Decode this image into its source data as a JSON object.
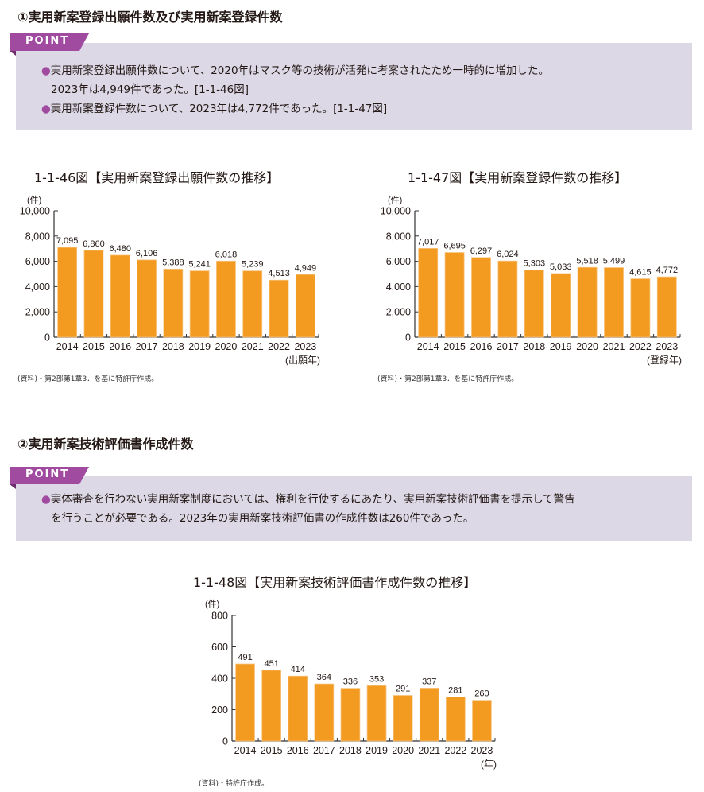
{
  "section1": {
    "title": "①実用新案登録出願件数及び実用新案登録件数",
    "point_label": "POINT",
    "bullet": "●",
    "lines": [
      "実用新案登録出願件数について、2020年はマスク等の技術が活発に考案されたため一時的に増加した。",
      "2023年は4,949件であった。[1-1-46図]",
      "実用新案登録件数について、2023年は4,772件であった。[1-1-47図]"
    ]
  },
  "section2": {
    "title": "②実用新案技術評価書作成件数",
    "point_label": "POINT",
    "bullet": "●",
    "lines": [
      "実体審査を行わない実用新案制度においては、権利を行使するにあたり、実用新案技術評価書を提示して警告",
      "を行うことが必要である。2023年の実用新案技術評価書の作成件数は260件であった。"
    ]
  },
  "colors": {
    "bar": "#f39a21",
    "bar_edge": "#f7c27a",
    "point_bg": "#dcd8e6",
    "point_tag": "#a04aa0",
    "axis": "#333333"
  },
  "chart_data": [
    {
      "type": "bar",
      "title": "1-1-46図【実用新案登録出願件数の推移】",
      "ylabel": "(件)",
      "xlabel": "(出願年)",
      "categories": [
        "2014",
        "2015",
        "2016",
        "2017",
        "2018",
        "2019",
        "2020",
        "2021",
        "2022",
        "2023"
      ],
      "values": [
        7095,
        6860,
        6480,
        6106,
        5388,
        5241,
        6018,
        5239,
        4513,
        4949
      ],
      "value_labels": [
        "7,095",
        "6,860",
        "6,480",
        "6,106",
        "5,388",
        "5,241",
        "6,018",
        "5,239",
        "4,513",
        "4,949"
      ],
      "ylim": [
        0,
        10000
      ],
      "yticks": [
        0,
        2000,
        4000,
        6000,
        8000,
        10000
      ],
      "ytick_labels": [
        "0",
        "2,000",
        "4,000",
        "6,000",
        "8,000",
        "10,000"
      ],
      "grid": false,
      "source": "(資料)・第2部第1章3．を基に特許庁作成。"
    },
    {
      "type": "bar",
      "title": "1-1-47図【実用新案登録件数の推移】",
      "ylabel": "(件)",
      "xlabel": "(登録年)",
      "categories": [
        "2014",
        "2015",
        "2016",
        "2017",
        "2018",
        "2019",
        "2020",
        "2021",
        "2022",
        "2023"
      ],
      "values": [
        7017,
        6695,
        6297,
        6024,
        5303,
        5033,
        5518,
        5499,
        4615,
        4772
      ],
      "value_labels": [
        "7,017",
        "6,695",
        "6,297",
        "6,024",
        "5,303",
        "5,033",
        "5,518",
        "5,499",
        "4,615",
        "4,772"
      ],
      "ylim": [
        0,
        10000
      ],
      "yticks": [
        0,
        2000,
        4000,
        6000,
        8000,
        10000
      ],
      "ytick_labels": [
        "0",
        "2,000",
        "4,000",
        "6,000",
        "8,000",
        "10,000"
      ],
      "grid": false,
      "source": "(資料)・第2部第1章3．を基に特許庁作成。"
    },
    {
      "type": "bar",
      "title": "1-1-48図【実用新案技術評価書作成件数の推移】",
      "ylabel": "(件)",
      "xlabel": "(年)",
      "categories": [
        "2014",
        "2015",
        "2016",
        "2017",
        "2018",
        "2019",
        "2020",
        "2021",
        "2022",
        "2023"
      ],
      "values": [
        491,
        451,
        414,
        364,
        336,
        353,
        291,
        337,
        281,
        260
      ],
      "value_labels": [
        "491",
        "451",
        "414",
        "364",
        "336",
        "353",
        "291",
        "337",
        "281",
        "260"
      ],
      "ylim": [
        0,
        800
      ],
      "yticks": [
        0,
        200,
        400,
        600,
        800
      ],
      "ytick_labels": [
        "0",
        "200",
        "400",
        "600",
        "800"
      ],
      "grid": false,
      "source": "(資料)・特許庁作成。"
    }
  ]
}
